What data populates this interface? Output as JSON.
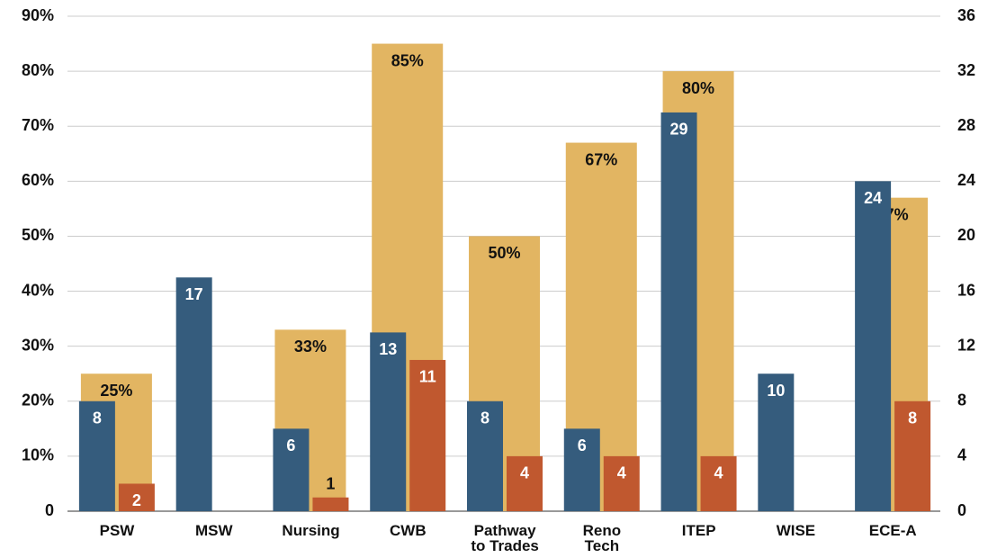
{
  "chart_data": {
    "type": "bar",
    "categories": [
      "PSW",
      "MSW",
      "Nursing",
      "CWB",
      "Pathway\nto Trades",
      "Reno\nTech",
      "ITEP",
      "WISE",
      "ECE-A"
    ],
    "series": [
      {
        "color": "#e2b562",
        "axis": "y",
        "values": [
          25,
          null,
          33,
          85,
          50,
          67,
          80,
          null,
          57
        ],
        "value_labels": [
          "25%",
          null,
          "33%",
          "85%",
          "50%",
          "67%",
          "80%",
          null,
          "57%"
        ]
      },
      {
        "color": "#355c7d",
        "axis": "y2",
        "values": [
          8,
          17,
          6,
          13,
          8,
          6,
          29,
          10,
          24
        ]
      },
      {
        "color": "#c0582f",
        "axis": "y2",
        "values": [
          2,
          null,
          1,
          11,
          4,
          4,
          4,
          null,
          8
        ]
      }
    ],
    "ylim": [
      0,
      90
    ],
    "yticks": [
      0,
      {
        "value": 10,
        "label": "10%"
      },
      {
        "value": 20,
        "label": "20%"
      },
      {
        "value": 30,
        "label": "30%"
      },
      {
        "value": 40,
        "label": "40%"
      },
      {
        "value": 50,
        "label": "50%"
      },
      {
        "value": 60,
        "label": "60%"
      },
      {
        "value": 70,
        "label": "70%"
      },
      {
        "value": 80,
        "label": "80%"
      },
      {
        "value": 90,
        "label": "90%"
      }
    ],
    "y2lim": [
      0,
      36
    ],
    "y2ticks": [
      0,
      4,
      8,
      12,
      16,
      20,
      24,
      28,
      32,
      36
    ],
    "grid": true
  }
}
